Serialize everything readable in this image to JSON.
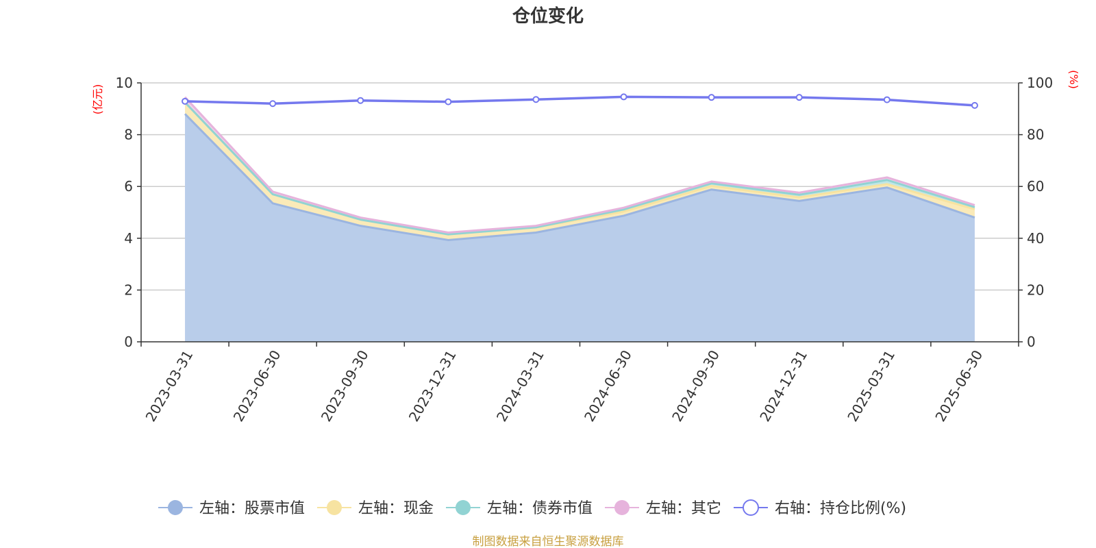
{
  "footer": "制图数据来自恒生聚源数据库",
  "chart_data": {
    "type": "area",
    "title": "仓位变化",
    "categories": [
      "2023-03-31",
      "2023-06-30",
      "2023-09-30",
      "2023-12-31",
      "2024-03-31",
      "2024-06-30",
      "2024-09-30",
      "2024-12-31",
      "2025-03-31",
      "2025-06-30"
    ],
    "left_axis": {
      "unit": "(亿元)",
      "ylim": [
        0,
        10
      ],
      "ticks": [
        "0",
        "2",
        "4",
        "6",
        "8",
        "10"
      ]
    },
    "right_axis": {
      "unit": "(%)",
      "ylim": [
        0,
        100
      ],
      "ticks": [
        "0",
        "20",
        "40",
        "60",
        "80",
        "100"
      ]
    },
    "grid": true,
    "legend_position": "bottom",
    "stacked": true,
    "series": [
      {
        "name": "左轴：股票市值",
        "axis": "left",
        "color": "#9bb5e0",
        "fill": "#b9cdea",
        "values": [
          8.8,
          5.35,
          4.48,
          3.93,
          4.22,
          4.87,
          5.88,
          5.44,
          5.96,
          4.8
        ]
      },
      {
        "name": "左轴：现金",
        "axis": "left",
        "color": "#f7e3a1",
        "fill": "#faeab8",
        "values": [
          0.45,
          0.35,
          0.24,
          0.22,
          0.2,
          0.16,
          0.14,
          0.14,
          0.13,
          0.32
        ]
      },
      {
        "name": "左轴：债券市值",
        "axis": "left",
        "color": "#91d3d3",
        "fill": "#bfe6e6",
        "values": [
          0.0,
          0.0,
          0.0,
          0.0,
          0.0,
          0.08,
          0.1,
          0.1,
          0.16,
          0.08
        ]
      },
      {
        "name": "左轴：其它",
        "axis": "left",
        "color": "#e6b3dc",
        "fill": "#f0d3ea",
        "values": [
          0.2,
          0.1,
          0.08,
          0.07,
          0.06,
          0.07,
          0.07,
          0.08,
          0.1,
          0.08
        ]
      },
      {
        "name": "右轴：持仓比例(%)",
        "axis": "right",
        "color": "#7478ee",
        "marker": "hollow-circle",
        "values": [
          92.9,
          92.0,
          93.2,
          92.7,
          93.6,
          94.6,
          94.4,
          94.4,
          93.5,
          91.3
        ]
      }
    ]
  }
}
